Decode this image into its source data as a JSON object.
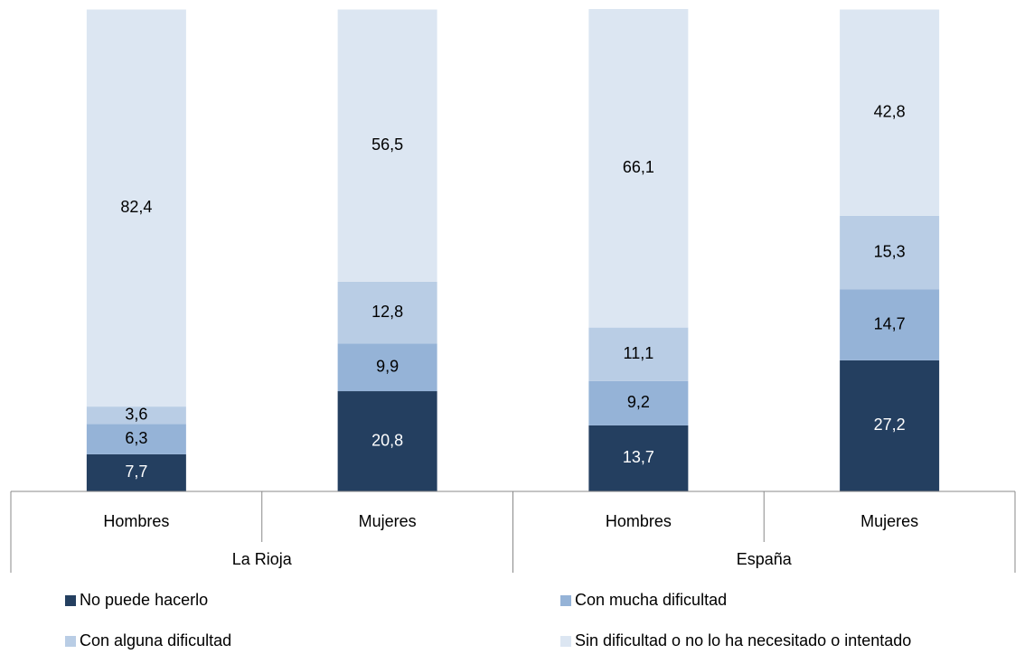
{
  "chart_data": {
    "type": "stacked_bar",
    "groups": [
      {
        "name": "La Rioja",
        "categories": [
          "Hombres",
          "Mujeres"
        ]
      },
      {
        "name": "España",
        "categories": [
          "Hombres",
          "Mujeres"
        ]
      }
    ],
    "series": [
      {
        "name": "No puede hacerlo",
        "color": "#243f60",
        "values": [
          7.7,
          20.8,
          13.7,
          27.2
        ],
        "value_labels": [
          "7,7",
          "20,8",
          "13,7",
          "27,2"
        ]
      },
      {
        "name": "Con mucha dificultad",
        "color": "#95b3d7",
        "values": [
          6.3,
          9.9,
          9.2,
          14.7
        ],
        "value_labels": [
          "6,3",
          "9,9",
          "9,2",
          "14,7"
        ]
      },
      {
        "name": "Con alguna dificultad",
        "color": "#b9cde5",
        "values": [
          3.6,
          12.8,
          11.1,
          15.3
        ],
        "value_labels": [
          "3,6",
          "12,8",
          "11,1",
          "15,3"
        ]
      },
      {
        "name": "Sin dificultad o no lo ha necesitado o intentado",
        "color": "#dce6f2",
        "values": [
          82.4,
          56.5,
          66.1,
          42.8
        ],
        "value_labels": [
          "82,4",
          "56,5",
          "66,1",
          "42,8"
        ]
      }
    ]
  }
}
